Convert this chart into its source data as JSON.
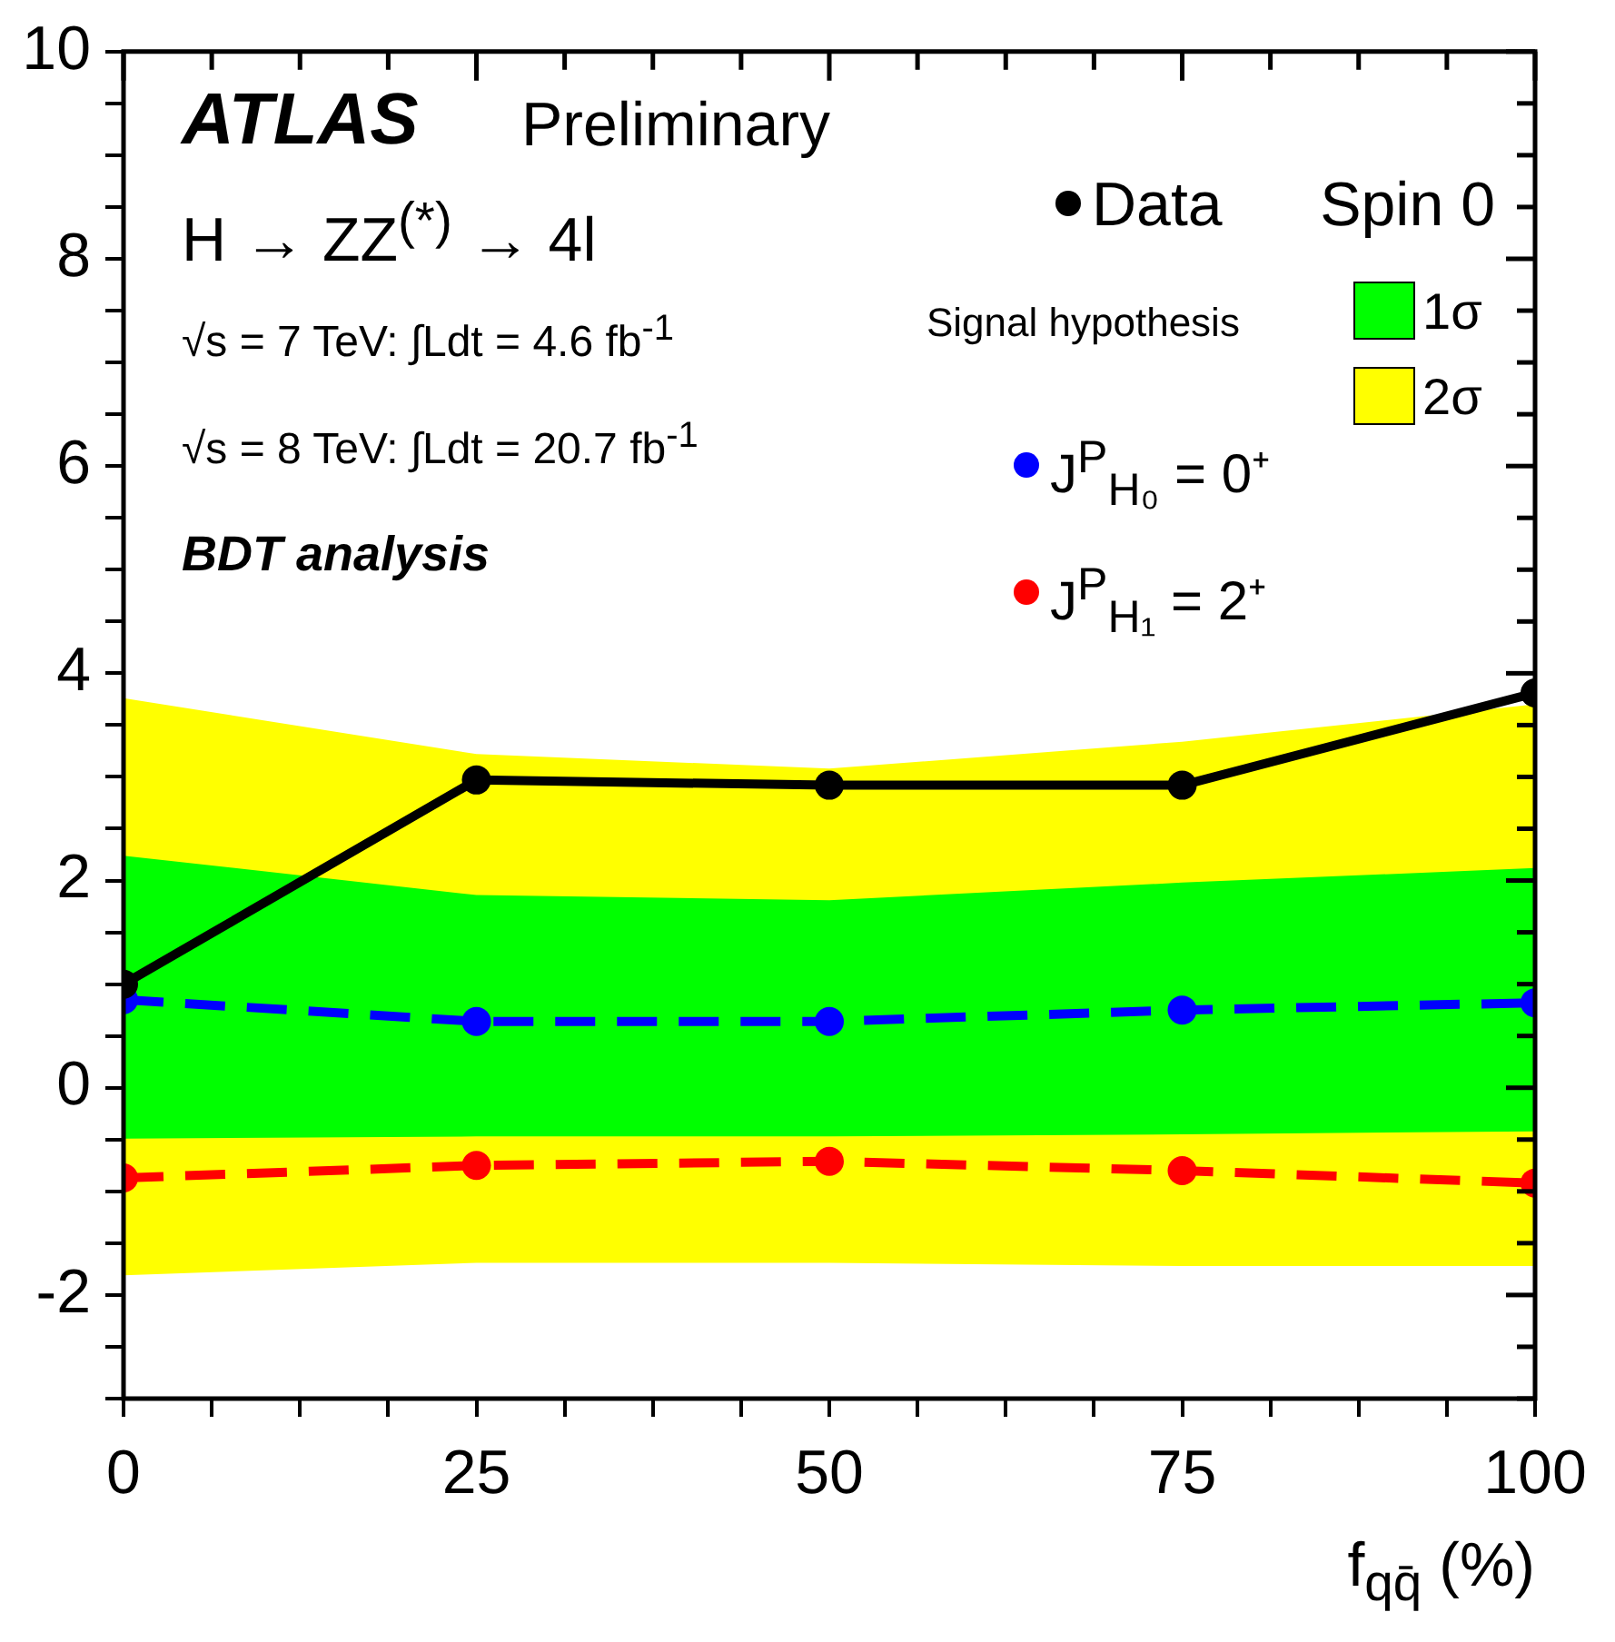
{
  "chart_data": {
    "type": "line",
    "x": [
      0,
      25,
      50,
      75,
      100
    ],
    "xlim": [
      0,
      100
    ],
    "xticks": [
      0,
      {
        "value": 6.25,
        "label": null
      },
      {
        "value": 12.5,
        "label": null
      },
      {
        "value": 18.75,
        "label": null
      },
      25,
      {
        "value": 31.25,
        "label": null
      },
      {
        "value": 37.5,
        "label": null
      },
      {
        "value": 43.75,
        "label": null
      },
      50,
      {
        "value": 56.25,
        "label": null
      },
      {
        "value": 62.5,
        "label": null
      },
      {
        "value": 68.75,
        "label": null
      },
      75,
      {
        "value": 81.25,
        "label": null
      },
      {
        "value": 87.5,
        "label": null
      },
      {
        "value": 93.75,
        "label": null
      },
      100
    ],
    "ylim": [
      -3,
      10
    ],
    "yticks": [
      {
        "value": -3,
        "label": null
      },
      {
        "value": -2.5,
        "label": null
      },
      -2,
      {
        "value": -1.5,
        "label": null
      },
      {
        "value": -1,
        "label": null
      },
      {
        "value": -0.5,
        "label": null
      },
      0,
      {
        "value": 0.5,
        "label": null
      },
      {
        "value": 1,
        "label": null
      },
      {
        "value": 1.5,
        "label": null
      },
      2,
      {
        "value": 2.5,
        "label": null
      },
      {
        "value": 3,
        "label": null
      },
      {
        "value": 3.5,
        "label": null
      },
      4,
      {
        "value": 4.5,
        "label": null
      },
      {
        "value": 5,
        "label": null
      },
      {
        "value": 5.5,
        "label": null
      },
      6,
      {
        "value": 6.5,
        "label": null
      },
      {
        "value": 7,
        "label": null
      },
      {
        "value": 7.5,
        "label": null
      },
      8,
      {
        "value": 8.5,
        "label": null
      },
      {
        "value": 9,
        "label": null
      },
      {
        "value": 9.5,
        "label": null
      },
      10
    ],
    "xlabel": "f$_{qq̄}$ (%)",
    "legend": "top right",
    "legend_title": "Signal hypothesis",
    "grid": false,
    "series": [
      {
        "name": "2σ",
        "type": "area",
        "color": "#ffff00",
        "values": [
          null,
          null,
          null,
          null,
          null
        ],
        "lower": [
          -1.81,
          -1.69,
          -1.69,
          -1.72,
          -1.72
        ],
        "upper": [
          3.76,
          3.22,
          3.08,
          3.34,
          3.7
        ]
      },
      {
        "name": "1σ",
        "type": "area",
        "color": "#00ff00",
        "values": [
          null,
          null,
          null,
          null,
          null
        ],
        "lower": [
          -0.49,
          -0.47,
          -0.47,
          -0.45,
          -0.42
        ],
        "upper": [
          2.24,
          1.86,
          1.81,
          1.98,
          2.12
        ]
      },
      {
        "name": "J$^{P}$$_{H₀}$ = 0⁺",
        "type": "line",
        "color": "#0000ff",
        "line_style": "dashed",
        "marker": "circle",
        "values": [
          0.85,
          0.64,
          0.64,
          0.75,
          0.82
        ]
      },
      {
        "name": "J$^{P}$$_{H₁}$ = 2⁺",
        "type": "line",
        "color": "#ff0000",
        "line_style": "dashed",
        "marker": "circle",
        "values": [
          -0.87,
          -0.75,
          -0.71,
          -0.8,
          -0.92
        ]
      },
      {
        "name": "Data",
        "type": "line",
        "color": "#000000",
        "line_style": "solid",
        "marker": "circle",
        "values": [
          1.0,
          2.97,
          2.92,
          2.92,
          3.81
        ]
      }
    ],
    "annotations": [
      "ATLAS",
      "Preliminary",
      "H → ZZ$^{(*)}$ → 4l",
      "√s = 7 TeV: ∫Ldt = 4.6 fb$^{-1}$",
      "√s = 8 TeV: ∫Ldt = 20.7 fb$^{-1}$",
      "BDT analysis",
      "Spin 0"
    ]
  }
}
